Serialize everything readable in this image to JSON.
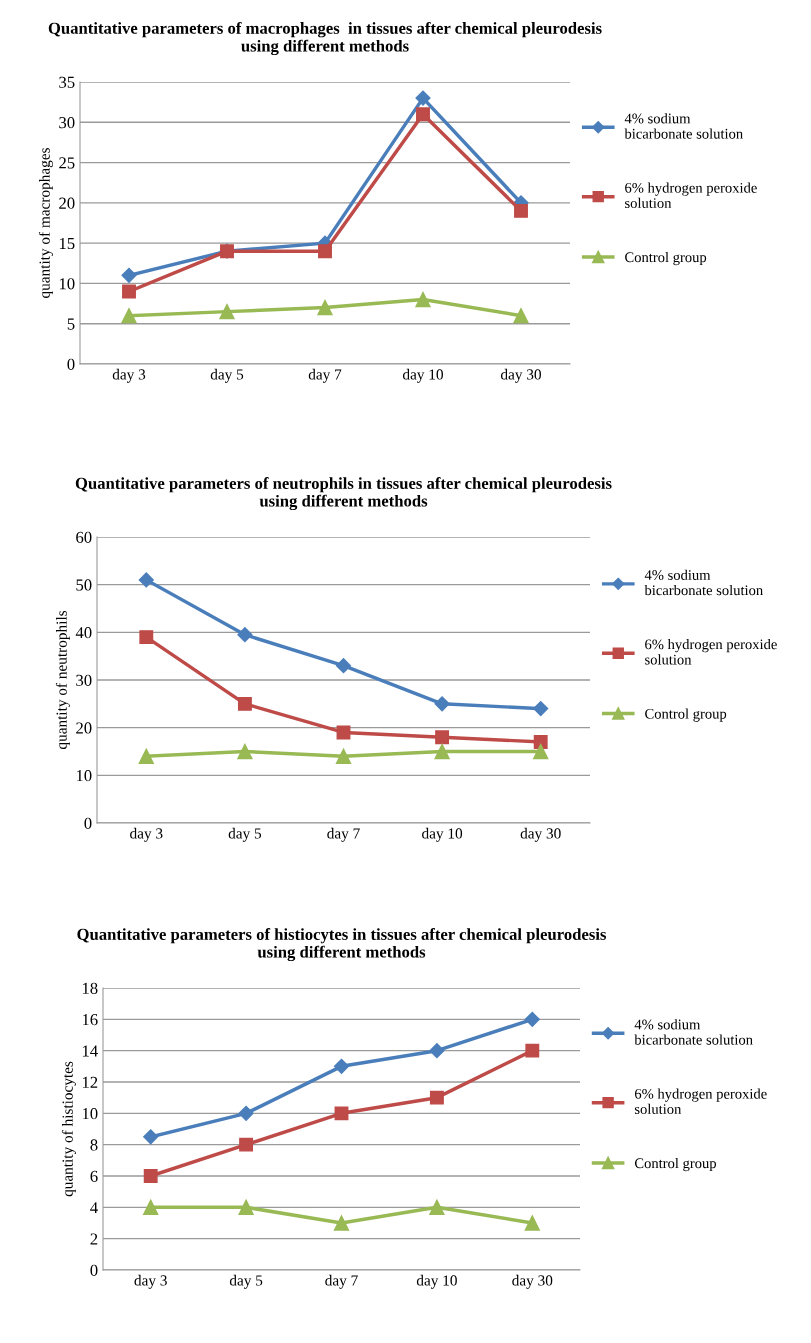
{
  "chart_data": [
    {
      "type": "line",
      "title": "Quantitative parameters of macrophages  in tissues after chemical pleurodesis using different methods",
      "ylabel": "quantity of macrophages",
      "categories": [
        "day 3",
        "day 5",
        "day 7",
        "day 10",
        "day 30"
      ],
      "ylim": [
        0,
        35
      ],
      "yticks": [
        0,
        5,
        10,
        15,
        20,
        25,
        30,
        35
      ],
      "grid": "y",
      "legend": "right",
      "series": [
        {
          "name": "4% sodium bicarbonate solution",
          "color": "#4a7ebb",
          "marker": "diamond",
          "values": [
            11,
            14,
            15,
            33,
            20
          ]
        },
        {
          "name": "6% hydrogen peroxide solution",
          "color": "#be4b48",
          "marker": "square",
          "values": [
            9,
            14,
            14,
            31,
            19
          ]
        },
        {
          "name": "Control group",
          "color": "#98b954",
          "marker": "triangle",
          "values": [
            6,
            6.5,
            7,
            8,
            6
          ]
        }
      ]
    },
    {
      "type": "line",
      "title": "Quantitative parameters of neutrophils in tissues after chemical pleurodesis using different methods",
      "ylabel": "quantity of neutrophils",
      "categories": [
        "day 3",
        "day 5",
        "day 7",
        "day 10",
        "day 30"
      ],
      "ylim": [
        0,
        60
      ],
      "yticks": [
        0,
        10,
        20,
        30,
        40,
        50,
        60
      ],
      "grid": "y",
      "legend": "right",
      "series": [
        {
          "name": "4% sodium bicarbonate solution",
          "color": "#4a7ebb",
          "marker": "diamond",
          "values": [
            51,
            39.5,
            33,
            25,
            24
          ]
        },
        {
          "name": "6% hydrogen peroxide solution",
          "color": "#be4b48",
          "marker": "square",
          "values": [
            39,
            25,
            19,
            18,
            17
          ]
        },
        {
          "name": "Control group",
          "color": "#98b954",
          "marker": "triangle",
          "values": [
            14,
            15,
            14,
            15,
            15
          ]
        }
      ]
    },
    {
      "type": "line",
      "title": "Quantitative parameters of histiocytes in tissues after chemical pleurodesis using different methods",
      "ylabel": "quantity of histiocytes",
      "categories": [
        "day 3",
        "day 5",
        "day 7",
        "day 10",
        "day 30"
      ],
      "ylim": [
        0,
        18
      ],
      "yticks": [
        0,
        2,
        4,
        6,
        8,
        10,
        12,
        14,
        16,
        18
      ],
      "grid": "y",
      "legend": "right",
      "series": [
        {
          "name": "4% sodium bicarbonate solution",
          "color": "#4a7ebb",
          "marker": "diamond",
          "values": [
            8.5,
            10,
            13,
            14,
            16
          ]
        },
        {
          "name": "6% hydrogen peroxide solution",
          "color": "#be4b48",
          "marker": "square",
          "values": [
            6,
            8,
            10,
            11,
            14
          ]
        },
        {
          "name": "Control group",
          "color": "#98b954",
          "marker": "triangle",
          "values": [
            4,
            4,
            3,
            4,
            3
          ]
        }
      ]
    }
  ]
}
